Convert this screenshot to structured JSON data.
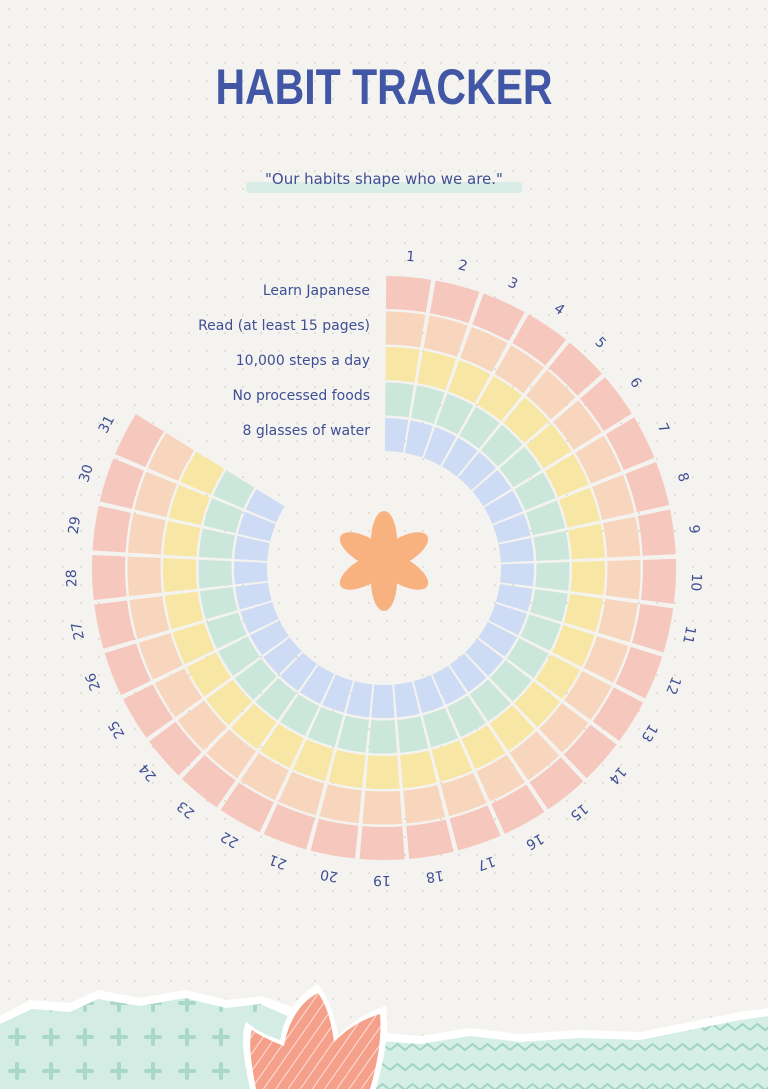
{
  "title": "HABIT TRACKER",
  "quote": "\"Our habits shape who we are.\"",
  "habits": [
    {
      "label": "Learn Japanese",
      "color": "#f6c7bd"
    },
    {
      "label": "Read (at least 15 pages)",
      "color": "#f8d5bd"
    },
    {
      "label": "10,000 steps a day",
      "color": "#f8e6a4"
    },
    {
      "label": "No processed foods",
      "color": "#cbe7dc"
    },
    {
      "label": "8 glasses of water",
      "color": "#cddcf4"
    }
  ],
  "days": [
    "1",
    "2",
    "3",
    "4",
    "5",
    "6",
    "7",
    "8",
    "9",
    "10",
    "11",
    "12",
    "13",
    "14",
    "15",
    "16",
    "17",
    "18",
    "19",
    "20",
    "21",
    "22",
    "23",
    "24",
    "25",
    "26",
    "27",
    "28",
    "29",
    "30",
    "31"
  ],
  "colors": {
    "text": "#3f4f95",
    "title": "#4157a6",
    "flower": "#f7b27f",
    "mint": "#cde9df",
    "coral": "#f29a84"
  }
}
